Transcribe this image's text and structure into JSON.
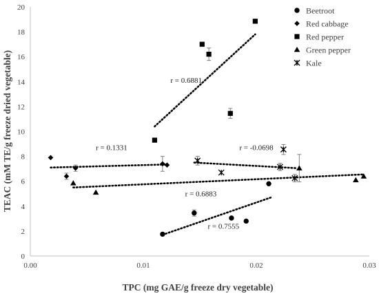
{
  "chart_data": {
    "type": "scatter",
    "xlabel": "TPC (mg GAE/g freeze dry vegetable)",
    "ylabel": "TEAC (mM TE/g freeze dried vegetable)",
    "xlim": [
      0,
      0.03
    ],
    "ylim": [
      0,
      20
    ],
    "x_ticks": [
      "0.00",
      "0.01",
      "0.02",
      "0.03"
    ],
    "y_ticks": [
      "0",
      "2",
      "4",
      "6",
      "8",
      "10",
      "12",
      "14",
      "16",
      "18",
      "20"
    ],
    "grid": false,
    "legend_position": "top-right",
    "series": [
      {
        "name": "Beetroot",
        "marker": "circle",
        "color": "#000000",
        "points": [
          {
            "x": 0.0117,
            "y": 1.75,
            "err": 0
          },
          {
            "x": 0.0145,
            "y": 3.45,
            "err": 0.25
          },
          {
            "x": 0.0178,
            "y": 3.05,
            "err": 0
          },
          {
            "x": 0.0191,
            "y": 2.8,
            "err": 0
          },
          {
            "x": 0.0211,
            "y": 5.8,
            "err": 0
          }
        ],
        "trend": {
          "x1": 0.0117,
          "y1": 1.7,
          "x2": 0.0213,
          "y2": 4.7
        },
        "r_label": "r = 0.7555",
        "r_pos": {
          "x": 0.0157,
          "y": 2.2
        }
      },
      {
        "name": "Red cabbage",
        "marker": "diamond",
        "color": "#000000",
        "points": [
          {
            "x": 0.0018,
            "y": 7.9,
            "err": 0
          },
          {
            "x": 0.0032,
            "y": 6.4,
            "err": 0.25
          },
          {
            "x": 0.004,
            "y": 7.05,
            "err": 0.25
          },
          {
            "x": 0.0117,
            "y": 7.4,
            "err": 0.6
          },
          {
            "x": 0.0121,
            "y": 7.3,
            "err": 0
          }
        ],
        "trend": {
          "x1": 0.0018,
          "y1": 7.1,
          "x2": 0.0121,
          "y2": 7.35
        },
        "r_label": "r = 0.1331",
        "r_pos": {
          "x": 0.0058,
          "y": 8.5
        }
      },
      {
        "name": "Red pepper",
        "marker": "square",
        "color": "#000000",
        "points": [
          {
            "x": 0.011,
            "y": 9.3,
            "err": 0
          },
          {
            "x": 0.0152,
            "y": 17.0,
            "err": 0
          },
          {
            "x": 0.0158,
            "y": 16.2,
            "err": 0.5
          },
          {
            "x": 0.0177,
            "y": 11.45,
            "err": 0.4
          },
          {
            "x": 0.0199,
            "y": 18.85,
            "err": 0
          }
        ],
        "trend": {
          "x1": 0.011,
          "y1": 10.4,
          "x2": 0.0199,
          "y2": 17.8
        },
        "r_label": "r = 0.6881",
        "r_pos": {
          "x": 0.0124,
          "y": 13.9
        }
      },
      {
        "name": "Green pepper",
        "marker": "triangle",
        "color": "#000000",
        "points": [
          {
            "x": 0.0038,
            "y": 5.85,
            "err": 0
          },
          {
            "x": 0.0058,
            "y": 5.1,
            "err": 0
          },
          {
            "x": 0.0238,
            "y": 7.05,
            "err": 1.1
          },
          {
            "x": 0.0288,
            "y": 6.1,
            "err": 0
          },
          {
            "x": 0.0295,
            "y": 6.4,
            "err": 0
          }
        ],
        "trend": {
          "x1": 0.0038,
          "y1": 5.5,
          "x2": 0.0295,
          "y2": 6.55
        },
        "r_label": "r = 0.6883",
        "r_pos": {
          "x": 0.0137,
          "y": 4.8
        }
      },
      {
        "name": "Kale",
        "marker": "star",
        "color": "#000000",
        "points": [
          {
            "x": 0.0148,
            "y": 7.65,
            "err": 0.35
          },
          {
            "x": 0.0169,
            "y": 6.7,
            "err": 0
          },
          {
            "x": 0.0221,
            "y": 7.15,
            "err": 0.3
          },
          {
            "x": 0.0224,
            "y": 8.55,
            "err": 0.4
          },
          {
            "x": 0.0234,
            "y": 6.25,
            "err": 0.3
          }
        ],
        "trend": {
          "x1": 0.0145,
          "y1": 7.5,
          "x2": 0.0236,
          "y2": 7.05
        },
        "r_label": "r = -0.0698",
        "r_pos": {
          "x": 0.0185,
          "y": 8.5
        }
      }
    ]
  }
}
